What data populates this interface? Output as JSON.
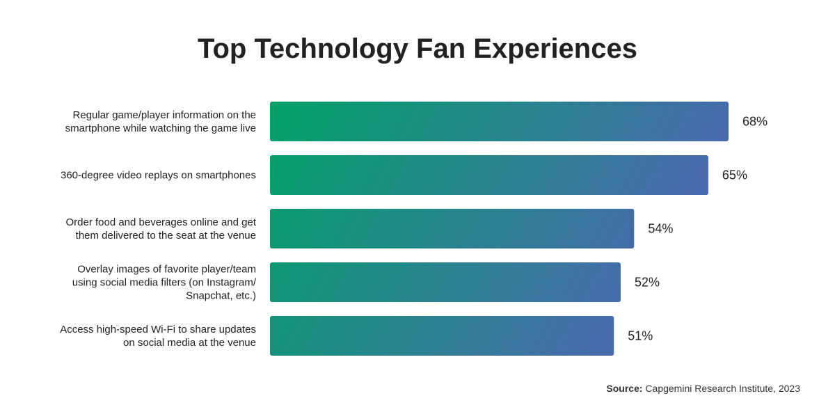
{
  "chart_data": {
    "type": "bar",
    "orientation": "horizontal",
    "title": "Top Technology Fan Experiences",
    "categories": [
      [
        "Regular game/player information on the",
        "smartphone while watching the game live"
      ],
      [
        "360-degree video replays on smartphones"
      ],
      [
        "Order food and beverages online and get",
        "them delivered to the seat at the venue"
      ],
      [
        "Overlay images of favorite player/team",
        "using social media filters (on Instagram/",
        "Snapchat, etc.)"
      ],
      [
        "Access high-speed Wi-Fi to share updates",
        "on social media at the venue"
      ]
    ],
    "values": [
      68,
      65,
      54,
      52,
      51
    ],
    "value_labels": [
      "68%",
      "65%",
      "54%",
      "52%",
      "51%"
    ],
    "xlim": [
      0,
      68
    ],
    "grid": false,
    "legend": "none",
    "colors": {
      "gradient_start": "#00a266",
      "gradient_end": "#5a5bbf"
    }
  },
  "source": {
    "label": "Source:",
    "text": "Capgemini Research Institute, 2023"
  }
}
